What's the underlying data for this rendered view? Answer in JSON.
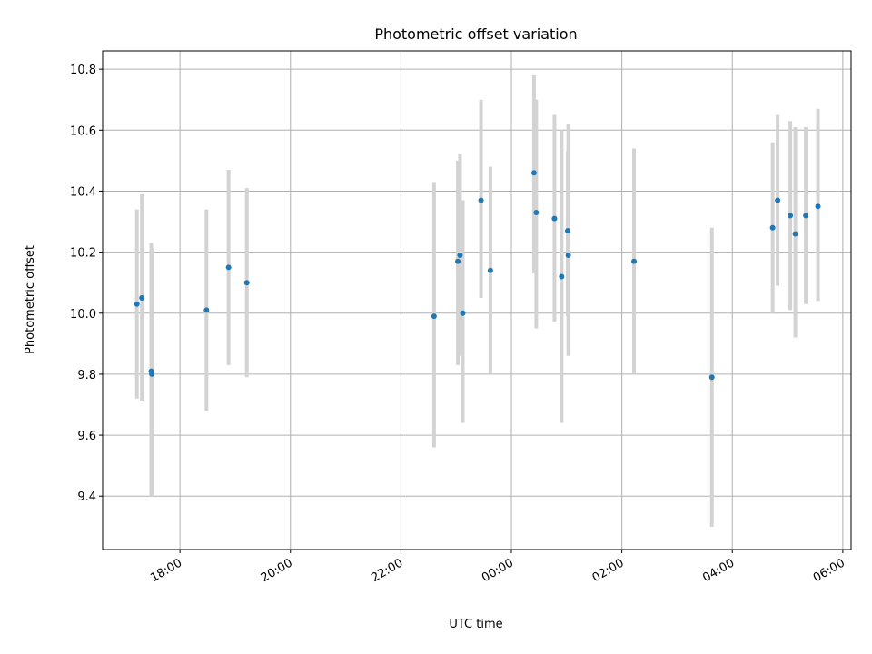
{
  "chart_data": {
    "type": "scatter",
    "title": "Photometric offset variation",
    "xlabel": "UTC time",
    "ylabel": "Photometric offset",
    "x_unit": "hours since 00:00 UTC",
    "xlim": [
      -7.4,
      6.15
    ],
    "ylim": [
      9.225,
      10.86
    ],
    "grid": true,
    "colors": {
      "point": "#1f77b4",
      "errorbar": "#d3d3d3"
    },
    "x_ticks": [
      {
        "value": -6,
        "label": "18:00"
      },
      {
        "value": -4,
        "label": "20:00"
      },
      {
        "value": -2,
        "label": "22:00"
      },
      {
        "value": 0,
        "label": "00:00"
      },
      {
        "value": 2,
        "label": "02:00"
      },
      {
        "value": 4,
        "label": "04:00"
      },
      {
        "value": 6,
        "label": "06:00"
      }
    ],
    "y_ticks": [
      {
        "value": 9.4,
        "label": "9.4"
      },
      {
        "value": 9.6,
        "label": "9.6"
      },
      {
        "value": 9.8,
        "label": "9.8"
      },
      {
        "value": 10.0,
        "label": "10.0"
      },
      {
        "value": 10.2,
        "label": "10.2"
      },
      {
        "value": 10.4,
        "label": "10.4"
      },
      {
        "value": 10.6,
        "label": "10.6"
      },
      {
        "value": 10.8,
        "label": "10.8"
      }
    ],
    "points": [
      {
        "x": -6.78,
        "y": 10.03,
        "ylo": 9.72,
        "yhi": 10.34
      },
      {
        "x": -6.69,
        "y": 10.05,
        "ylo": 9.71,
        "yhi": 10.39
      },
      {
        "x": -6.52,
        "y": 9.81,
        "ylo": 9.4,
        "yhi": 10.23
      },
      {
        "x": -6.51,
        "y": 9.8,
        "ylo": 9.4,
        "yhi": 10.21
      },
      {
        "x": -5.52,
        "y": 10.01,
        "ylo": 9.68,
        "yhi": 10.34
      },
      {
        "x": -5.12,
        "y": 10.15,
        "ylo": 9.83,
        "yhi": 10.47
      },
      {
        "x": -4.79,
        "y": 10.1,
        "ylo": 9.79,
        "yhi": 10.41
      },
      {
        "x": -1.4,
        "y": 9.99,
        "ylo": 9.56,
        "yhi": 10.43
      },
      {
        "x": -0.97,
        "y": 10.17,
        "ylo": 9.83,
        "yhi": 10.5
      },
      {
        "x": -0.93,
        "y": 10.19,
        "ylo": 9.86,
        "yhi": 10.52
      },
      {
        "x": -0.88,
        "y": 10.0,
        "ylo": 9.64,
        "yhi": 10.37
      },
      {
        "x": -0.55,
        "y": 10.37,
        "ylo": 10.05,
        "yhi": 10.7
      },
      {
        "x": -0.38,
        "y": 10.14,
        "ylo": 9.8,
        "yhi": 10.48
      },
      {
        "x": 0.41,
        "y": 10.46,
        "ylo": 10.13,
        "yhi": 10.78
      },
      {
        "x": 0.45,
        "y": 10.33,
        "ylo": 9.95,
        "yhi": 10.7
      },
      {
        "x": 0.78,
        "y": 10.31,
        "ylo": 9.97,
        "yhi": 10.65
      },
      {
        "x": 0.91,
        "y": 10.12,
        "ylo": 9.64,
        "yhi": 10.6
      },
      {
        "x": 1.02,
        "y": 10.27,
        "ylo": 9.99,
        "yhi": 10.53
      },
      {
        "x": 1.03,
        "y": 10.19,
        "ylo": 9.86,
        "yhi": 10.62
      },
      {
        "x": 2.22,
        "y": 10.17,
        "ylo": 9.8,
        "yhi": 10.54
      },
      {
        "x": 3.63,
        "y": 9.79,
        "ylo": 9.3,
        "yhi": 10.28
      },
      {
        "x": 4.73,
        "y": 10.28,
        "ylo": 10.0,
        "yhi": 10.56
      },
      {
        "x": 4.82,
        "y": 10.37,
        "ylo": 10.09,
        "yhi": 10.65
      },
      {
        "x": 5.05,
        "y": 10.32,
        "ylo": 10.01,
        "yhi": 10.63
      },
      {
        "x": 5.14,
        "y": 10.26,
        "ylo": 9.92,
        "yhi": 10.61
      },
      {
        "x": 5.33,
        "y": 10.32,
        "ylo": 10.03,
        "yhi": 10.61
      },
      {
        "x": 5.55,
        "y": 10.35,
        "ylo": 10.04,
        "yhi": 10.67
      }
    ]
  }
}
